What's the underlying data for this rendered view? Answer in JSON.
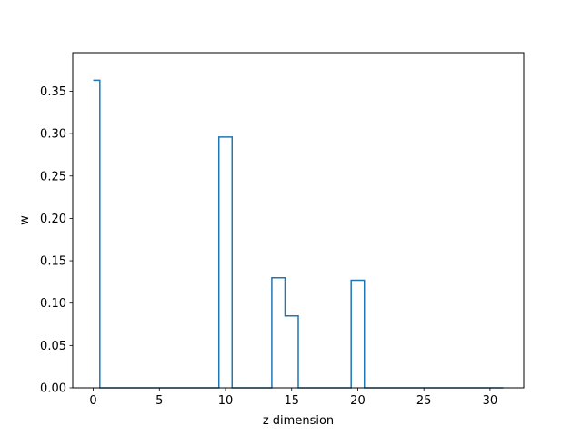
{
  "chart_data": {
    "type": "line",
    "drawstyle": "steps-mid",
    "title": "",
    "xlabel": "z dimension",
    "ylabel": "w",
    "xlim": [
      -1.55,
      32.55
    ],
    "ylim": [
      0.0,
      0.3955
    ],
    "xticks": [
      0,
      5,
      10,
      15,
      20,
      25,
      30
    ],
    "yticks": [
      0.0,
      0.05,
      0.1,
      0.15,
      0.2,
      0.25,
      0.3,
      0.35
    ],
    "ytick_labels": [
      "0.00",
      "0.05",
      "0.10",
      "0.15",
      "0.20",
      "0.25",
      "0.30",
      "0.35"
    ],
    "grid": false,
    "legend": "none",
    "color": "#1f77b4",
    "series": [
      {
        "x": [
          0,
          1,
          2,
          3,
          4,
          5,
          6,
          7,
          8,
          9,
          10,
          11,
          12,
          13,
          14,
          15,
          16,
          17,
          18,
          19,
          20,
          21,
          22,
          23,
          24,
          25,
          26,
          27,
          28,
          29,
          30,
          31
        ],
        "values": [
          0.363,
          0,
          0,
          0,
          0,
          0,
          0,
          0,
          0,
          0,
          0.296,
          0,
          0,
          0,
          0.13,
          0.085,
          0,
          0,
          0,
          0,
          0.127,
          0,
          0,
          0,
          0,
          0,
          0,
          0,
          0,
          0,
          0,
          0
        ]
      }
    ]
  }
}
